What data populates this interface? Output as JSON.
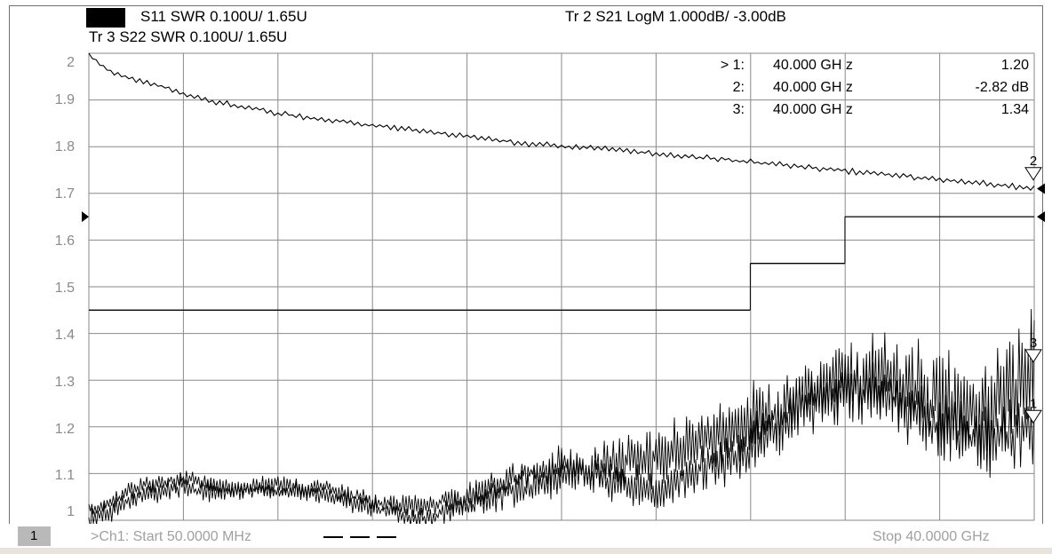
{
  "header": {
    "trace1": "S11 SWR 0.100U/  1.65U",
    "trace3": "Tr 3  S22 SWR 0.100U/  1.65U",
    "trace2": "Tr 2  S21 LogM 1.000dB/  -3.00dB"
  },
  "markers": [
    {
      "name": "> 1:",
      "freq": "40.000  GH z",
      "value": "1.20"
    },
    {
      "name": "2:",
      "freq": "40.000  GH z",
      "value": "-2.82 dB"
    },
    {
      "name": "3:",
      "freq": "40.000  GH z",
      "value": "1.34"
    }
  ],
  "footer": {
    "channel_number": "1",
    "start": ">Ch1:  Start  50.0000 MHz",
    "stop": "Stop  40.0000 GHz"
  },
  "chart_data": {
    "type": "line",
    "xlim": [
      0.05,
      40.0
    ],
    "ylim": [
      1.0,
      2.0
    ],
    "yticks": [
      "2",
      "1.9",
      "1.8",
      "1.7",
      "1.6",
      "1.5",
      "1.4",
      "1.3",
      "1.2",
      "1.1",
      "1"
    ],
    "grid": true,
    "series": [
      {
        "x": [
          0.05,
          0.5,
          1,
          2,
          3,
          4,
          5,
          6,
          8,
          10,
          12,
          14,
          16,
          18,
          20,
          22,
          24,
          26,
          28,
          30,
          32,
          34,
          36,
          38,
          40
        ],
        "values": [
          2.0,
          1.975,
          1.96,
          1.945,
          1.93,
          1.915,
          1.9,
          1.89,
          1.872,
          1.858,
          1.845,
          1.835,
          1.822,
          1.81,
          1.8,
          1.795,
          1.785,
          1.777,
          1.768,
          1.758,
          1.748,
          1.74,
          1.73,
          1.72,
          1.71
        ]
      },
      {
        "x": [
          0.05,
          1,
          2,
          4,
          6,
          8,
          10,
          12,
          14,
          16,
          18,
          20,
          22,
          24,
          26,
          28,
          30,
          32,
          34,
          36,
          38,
          40
        ],
        "values": [
          1.02,
          1.04,
          1.07,
          1.09,
          1.07,
          1.06,
          1.07,
          1.04,
          1.03,
          1.05,
          1.09,
          1.12,
          1.09,
          1.06,
          1.11,
          1.16,
          1.24,
          1.28,
          1.26,
          1.2,
          1.17,
          1.2
        ]
      },
      {
        "x": [
          0.05,
          1,
          2,
          4,
          6,
          8,
          10,
          12,
          14,
          16,
          18,
          20,
          22,
          24,
          26,
          28,
          30,
          32,
          34,
          36,
          38,
          40
        ],
        "values": [
          1.0,
          1.02,
          1.05,
          1.07,
          1.06,
          1.08,
          1.05,
          1.03,
          1.0,
          1.03,
          1.06,
          1.1,
          1.12,
          1.14,
          1.17,
          1.2,
          1.25,
          1.3,
          1.31,
          1.25,
          1.22,
          1.34
        ]
      }
    ],
    "limit_lines": [
      {
        "x": [
          0.05,
          28.0
        ],
        "value": 1.45
      },
      {
        "x": [
          28.0,
          32.0
        ],
        "value": 1.55
      },
      {
        "x": [
          32.0,
          40.0
        ],
        "value": 1.65
      }
    ],
    "marker_flags": [
      {
        "label": "2",
        "value": 1.74
      },
      {
        "label": "3",
        "value": 1.35
      },
      {
        "label": "1",
        "value": 1.22
      }
    ],
    "reference_arrows": {
      "left": [
        1.65
      ],
      "right": [
        1.71,
        1.65
      ]
    }
  }
}
